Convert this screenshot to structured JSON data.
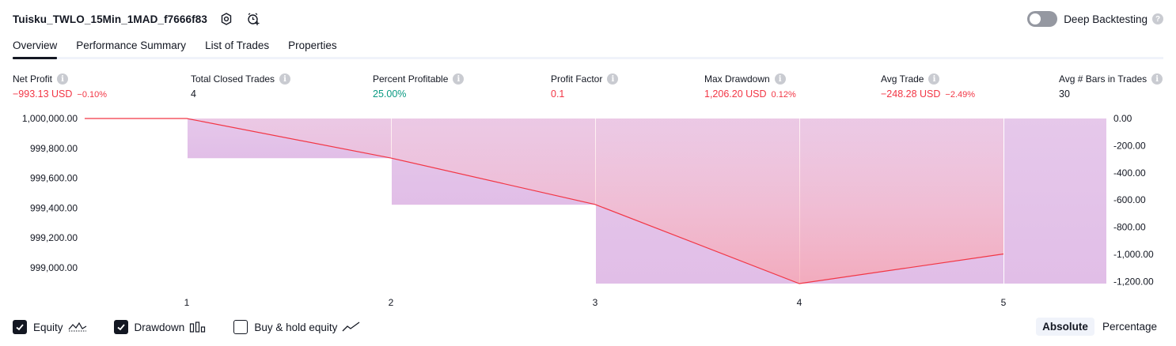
{
  "header": {
    "title": "Tuisku_TWLO_15Min_1MAD_f7666f83",
    "deep_backtesting_label": "Deep Backtesting"
  },
  "tabs": [
    {
      "label": "Overview"
    },
    {
      "label": "Performance Summary"
    },
    {
      "label": "List of Trades"
    },
    {
      "label": "Properties"
    }
  ],
  "stats": {
    "net_profit": {
      "label": "Net Profit",
      "value": "−993.13 USD",
      "pct": "−0.10%"
    },
    "total_closed_trades": {
      "label": "Total Closed Trades",
      "value": "4"
    },
    "percent_profitable": {
      "label": "Percent Profitable",
      "value": "25.00%"
    },
    "profit_factor": {
      "label": "Profit Factor",
      "value": "0.1"
    },
    "max_drawdown": {
      "label": "Max Drawdown",
      "value": "1,206.20 USD",
      "pct": "0.12%"
    },
    "avg_trade": {
      "label": "Avg Trade",
      "value": "−248.28 USD",
      "pct": "−2.49%"
    },
    "avg_bars": {
      "label": "Avg # Bars in Trades",
      "value": "30"
    }
  },
  "chart_data": {
    "type": "line",
    "x_ticks": [
      "1",
      "2",
      "3",
      "4",
      "5"
    ],
    "equity": {
      "x": [
        0.5,
        1,
        2,
        3,
        4,
        5
      ],
      "y": [
        1000000,
        1000000,
        999710,
        999370,
        998790,
        999007
      ]
    },
    "drawdown": {
      "categories": [
        1.5,
        2.5,
        3.5,
        4.5,
        5.5
      ],
      "values": [
        -290,
        -630,
        -1206,
        -1206,
        -1206
      ]
    },
    "left_axis": {
      "ticks": [
        "1,000,000.00",
        "999,800.00",
        "999,600.00",
        "999,400.00",
        "999,200.00",
        "999,000.00"
      ],
      "range": [
        998790,
        1000000
      ]
    },
    "right_axis": {
      "ticks": [
        "0.00",
        "-200.00",
        "-400.00",
        "-600.00",
        "-800.00",
        "-1,000.00",
        "-1,200.00"
      ],
      "range": [
        -1206,
        0
      ]
    },
    "colors": {
      "equity": "#f23645",
      "equity_fill": "#ffcdd2",
      "drawdown": "#e1bee7"
    }
  },
  "footer": {
    "equity_label": "Equity",
    "drawdown_label": "Drawdown",
    "buyhold_label": "Buy & hold equity",
    "absolute_label": "Absolute",
    "percentage_label": "Percentage"
  }
}
